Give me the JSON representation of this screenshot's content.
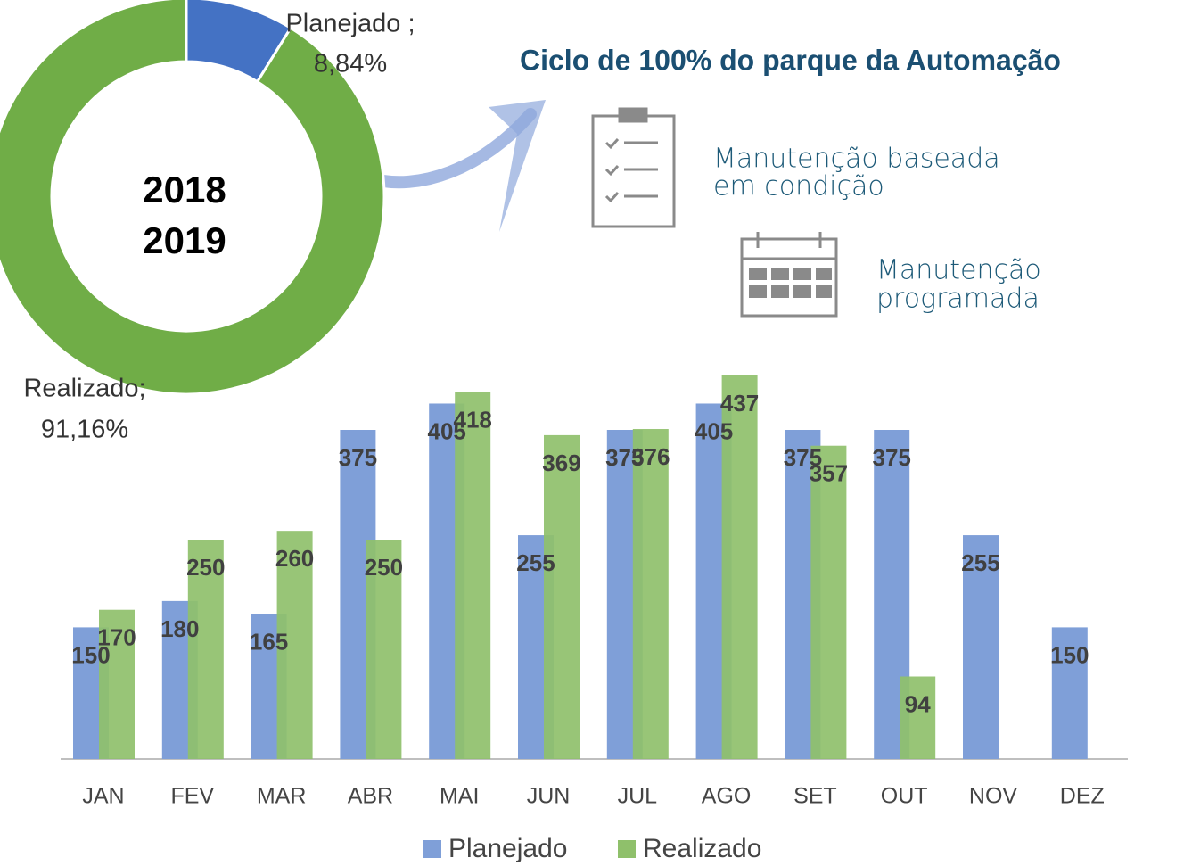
{
  "title": "Ciclo de 100% do parque da Automação",
  "items": [
    {
      "lines": [
        "Manutenção baseada",
        "em condição"
      ]
    },
    {
      "lines": [
        "Manutenção",
        "programada"
      ]
    }
  ],
  "chart_data": [
    {
      "type": "pie",
      "categories": [
        "Planejado ;",
        "Realizado;"
      ],
      "values": [
        8.84,
        91.16
      ],
      "value_labels": [
        "8,84%",
        "91,16%"
      ],
      "colors": [
        "#4472c4",
        "#70ad47"
      ],
      "center_text": [
        "2018",
        "2019"
      ]
    },
    {
      "type": "bar",
      "categories": [
        "JAN",
        "FEV",
        "MAR",
        "ABR",
        "MAI",
        "JUN",
        "JUL",
        "AGO",
        "SET",
        "OUT",
        "NOV",
        "DEZ"
      ],
      "series": [
        {
          "name": "Planejado",
          "color": "#7f9fd8",
          "values": [
            150,
            180,
            165,
            375,
            405,
            255,
            375,
            405,
            375,
            375,
            255,
            150
          ]
        },
        {
          "name": "Realizado",
          "color": "#8fc06b",
          "values": [
            170,
            250,
            260,
            250,
            418,
            369,
            376,
            437,
            357,
            94,
            null,
            null
          ]
        }
      ]
    }
  ]
}
